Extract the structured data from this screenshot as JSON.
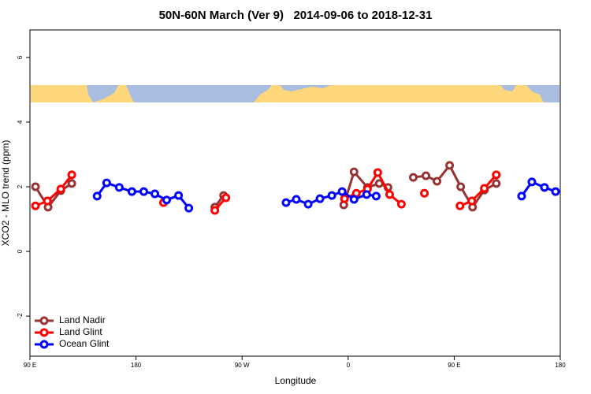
{
  "chart_data": {
    "type": "line",
    "title": "50N-60N March (Ver 9)   2014-09-06 to 2018-12-31",
    "x_label": "Longitude",
    "y_label": "XCO2 - MLO trend (ppm)",
    "xlim": [
      90,
      540
    ],
    "ylim": [
      -3.24,
      6.85
    ],
    "xticks": [
      {
        "value": 90,
        "label": "90 E"
      },
      {
        "value": 180,
        "label": "180"
      },
      {
        "value": 270,
        "label": "90 W"
      },
      {
        "value": 360,
        "label": "0"
      },
      {
        "value": 450,
        "label": "90 E"
      },
      {
        "value": 540,
        "label": "180"
      }
    ],
    "yticks": [
      -2,
      0,
      2,
      4,
      6
    ],
    "legend": "bottom-left",
    "series": [
      {
        "name": "Land Nadir",
        "color": "#993333",
        "x": [
          94.7,
          105.4,
          116.2,
          125.5,
          null,
          246.9,
          254.3,
          null,
          356.3,
          365.0,
          376.4,
          386.4,
          393.8,
          null,
          415.3,
          426.0,
          435.4,
          446.1,
          455.5,
          465.6,
          475.6,
          485.7
        ],
        "values": [
          2.0,
          1.37,
          1.88,
          2.1,
          null,
          1.37,
          1.73,
          null,
          1.44,
          2.46,
          1.98,
          2.1,
          1.98,
          null,
          2.29,
          2.34,
          2.17,
          2.66,
          2.0,
          1.37,
          1.9,
          2.1
        ]
      },
      {
        "name": "Land Glint",
        "color": "#ff0000",
        "x": [
          94.7,
          104.8,
          116.2,
          125.5,
          null,
          203.3,
          null,
          246.9,
          256.3,
          null,
          356.9,
          367.0,
          376.4,
          385.1,
          395.2,
          405.2,
          null,
          424.7,
          null,
          454.9,
          464.9,
          475.6,
          485.7
        ],
        "values": [
          1.41,
          1.56,
          1.93,
          2.37,
          null,
          1.51,
          null,
          1.27,
          1.66,
          null,
          1.63,
          1.8,
          1.93,
          2.44,
          1.76,
          1.46,
          null,
          1.8,
          null,
          1.41,
          1.56,
          1.95,
          2.37
        ]
      },
      {
        "name": "Ocean Glint",
        "color": "#0000ff",
        "x": [
          147.0,
          155.1,
          165.8,
          176.5,
          186.6,
          196.0,
          206.0,
          216.1,
          224.8,
          null,
          307.3,
          316.0,
          326.1,
          336.1,
          346.2,
          354.9,
          365.0,
          375.7,
          383.8,
          null,
          507.2,
          515.9,
          526.6,
          536.0
        ],
        "values": [
          1.71,
          2.12,
          1.98,
          1.85,
          1.85,
          1.78,
          1.59,
          1.73,
          1.34,
          null,
          1.51,
          1.61,
          1.46,
          1.63,
          1.73,
          1.85,
          1.61,
          1.76,
          1.71,
          null,
          1.71,
          2.15,
          1.98,
          1.85
        ]
      }
    ]
  }
}
